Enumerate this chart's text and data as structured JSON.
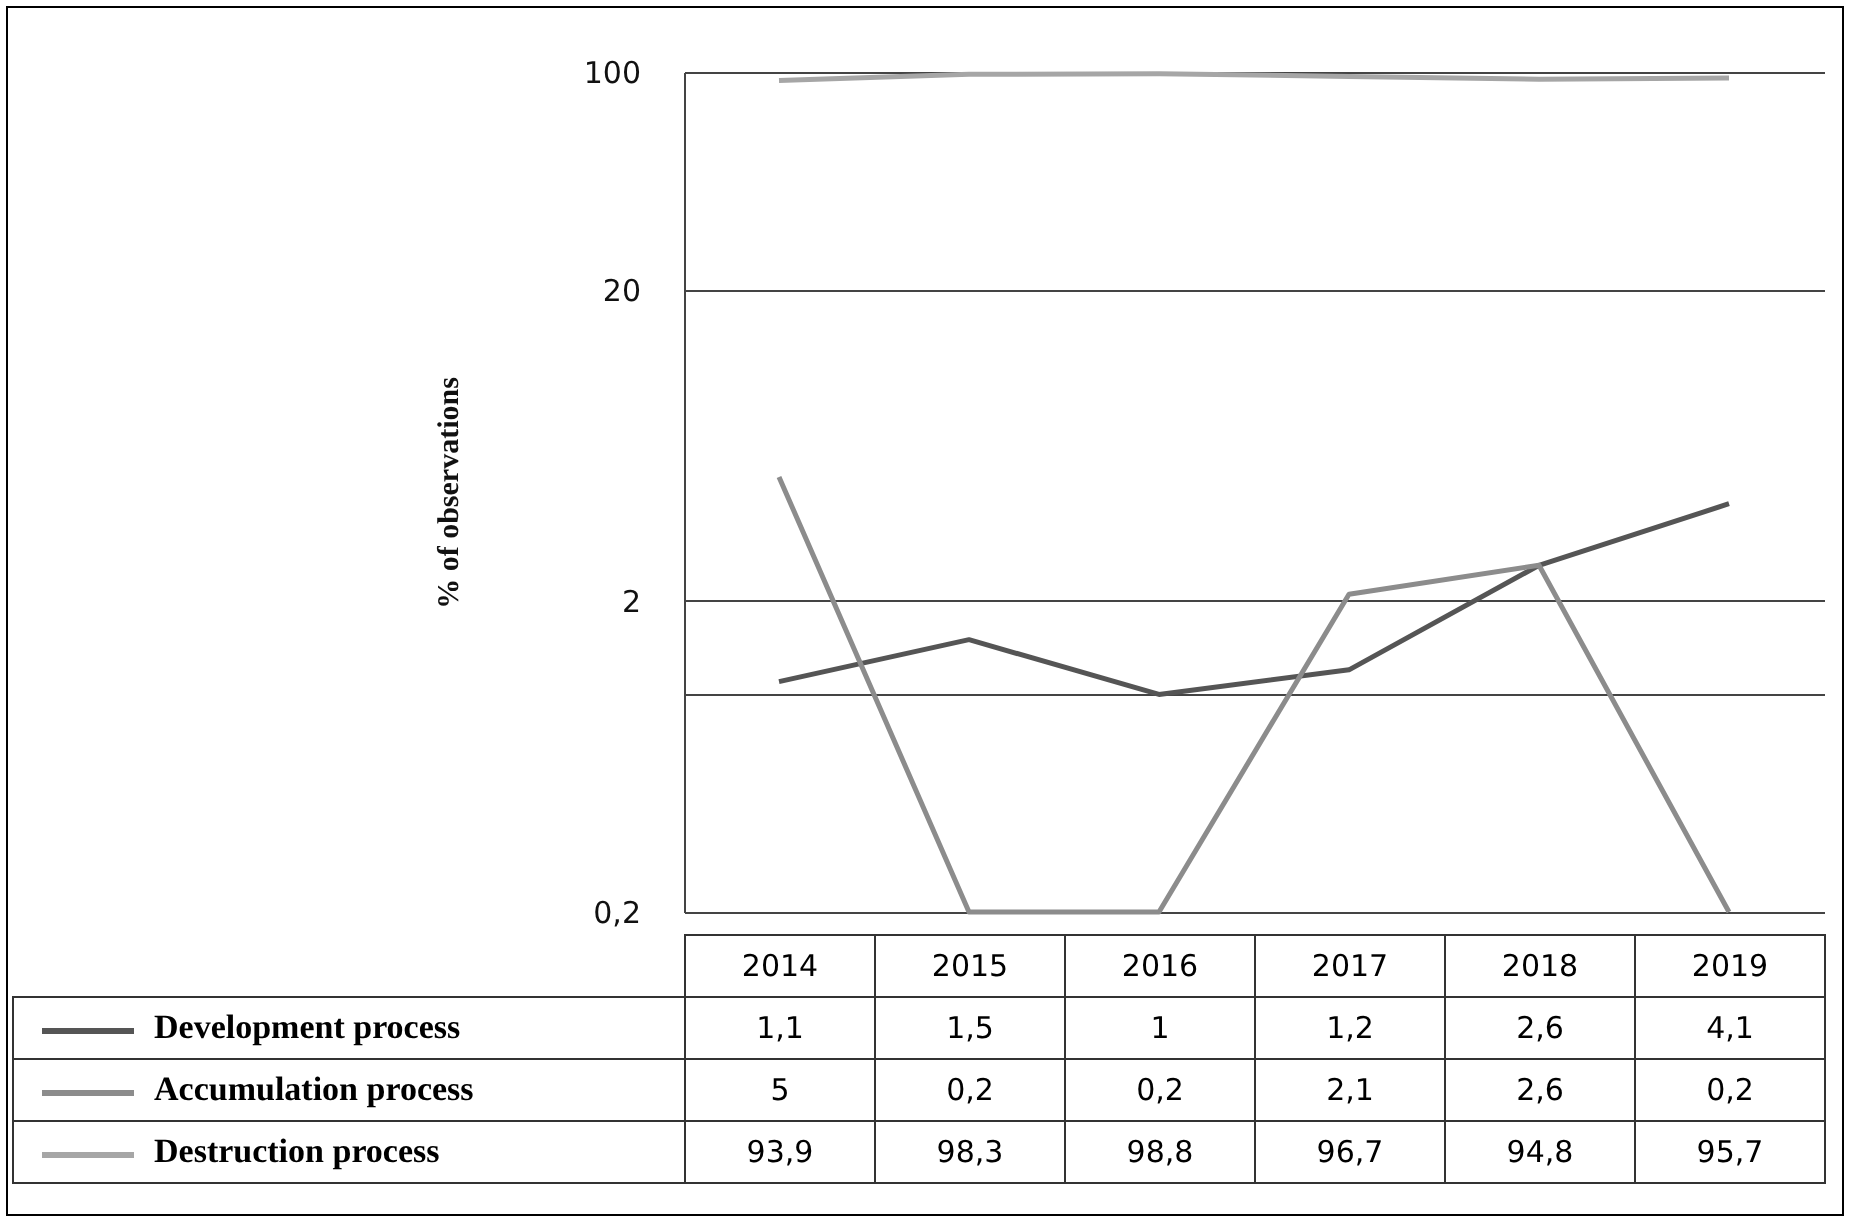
{
  "chart_data": {
    "type": "line",
    "ylabel": "% of observations",
    "categories": [
      "2014",
      "2015",
      "2016",
      "2017",
      "2018",
      "2019"
    ],
    "series": [
      {
        "name": "Development process",
        "color": "#555555",
        "values": [
          1.1,
          1.5,
          1,
          1.2,
          2.6,
          4.1
        ],
        "value_labels": [
          "1,1",
          "1,5",
          "1",
          "1,2",
          "2,6",
          "4,1"
        ]
      },
      {
        "name": "Accumulation process",
        "color": "#8c8c8c",
        "values": [
          5,
          0.2,
          0.2,
          2.1,
          2.6,
          0.2
        ],
        "value_labels": [
          "5",
          "0,2",
          "0,2",
          "2,1",
          "2,6",
          "0,2"
        ]
      },
      {
        "name": "Destruction process",
        "color": "#a6a6a6",
        "values": [
          93.9,
          98.3,
          98.8,
          96.7,
          94.8,
          95.7
        ],
        "value_labels": [
          "93,9",
          "98,3",
          "98,8",
          "96,7",
          "94,8",
          "95,7"
        ]
      }
    ],
    "log": true,
    "ylim": [
      0.2,
      100
    ],
    "yticks": [
      {
        "value": 0.2,
        "label": "0,2"
      },
      {
        "value": 1,
        "label": null
      },
      2,
      20,
      100
    ],
    "grid": "y",
    "legend": "bottom"
  }
}
